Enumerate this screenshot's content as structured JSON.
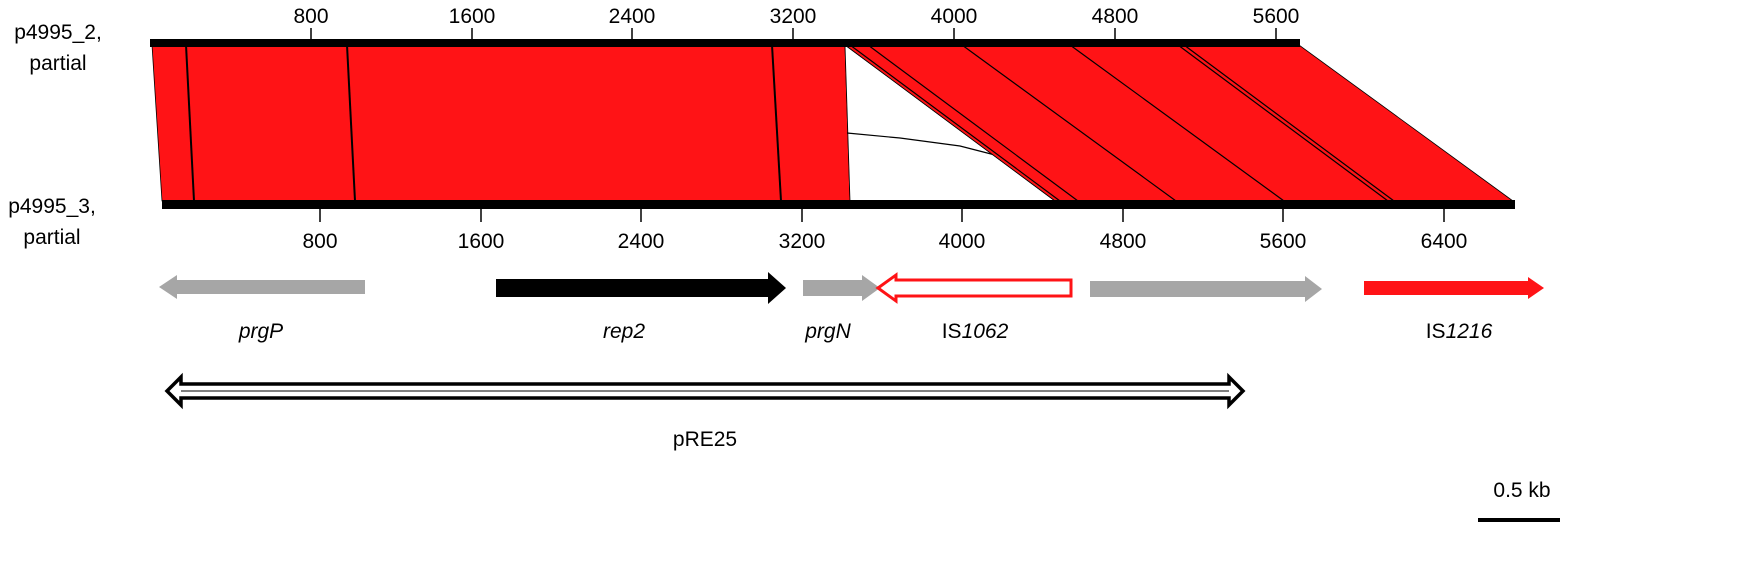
{
  "sequences": {
    "top": {
      "label_line1": "p4995_2,",
      "label_line2": "partial",
      "ticks": [
        "800",
        "1600",
        "2400",
        "3200",
        "4000",
        "4800",
        "5600"
      ]
    },
    "bottom": {
      "label_line1": "p4995_3,",
      "label_line2": "partial",
      "ticks": [
        "800",
        "1600",
        "2400",
        "3200",
        "4000",
        "4800",
        "5600",
        "6400"
      ]
    }
  },
  "colors": {
    "alignment": "#ff1316",
    "gene_gray": "#a6a6a6",
    "gene_black": "#000000",
    "is_red": "#ff1316"
  },
  "genes": [
    {
      "name": "prgP",
      "italic": true,
      "color": "gene_gray",
      "direction": "left",
      "style": "filled"
    },
    {
      "name": "rep2",
      "italic": true,
      "color": "gene_black",
      "direction": "right",
      "style": "filled"
    },
    {
      "name": "prgN",
      "italic": true,
      "color": "gene_gray",
      "direction": "right",
      "style": "filled"
    },
    {
      "name_prefix": "IS",
      "name_italic": "1062",
      "color": "is_red",
      "direction": "left",
      "style": "outline"
    },
    {
      "name": "",
      "color": "gene_gray",
      "direction": "right",
      "style": "filled"
    },
    {
      "name_prefix": "IS",
      "name_italic": "1216",
      "color": "is_red",
      "direction": "right",
      "style": "filled"
    }
  ],
  "plasmid_region": {
    "label": "pRE25"
  },
  "scale_bar": {
    "label": "0.5 kb"
  }
}
